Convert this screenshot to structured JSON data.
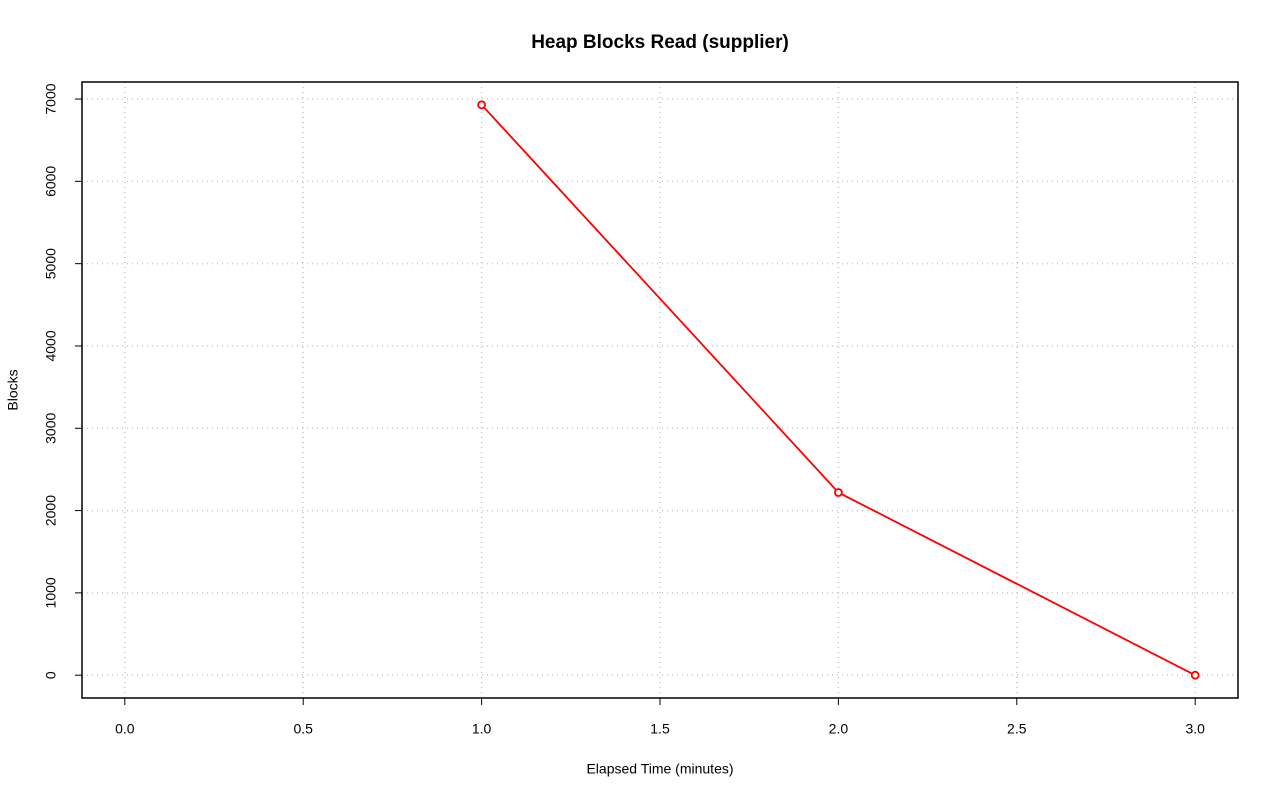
{
  "chart_data": {
    "type": "line",
    "title": "Heap Blocks Read (supplier)",
    "x_label": "Elapsed Time (minutes)",
    "y_label": "Blocks",
    "x": [
      1,
      2,
      3
    ],
    "series": [
      {
        "name": "supplier",
        "color": "#ff0000",
        "values": [
          6930,
          2220,
          0
        ]
      }
    ],
    "xlim": [
      -0.12,
      3.12
    ],
    "xticks": [
      {
        "value": 0,
        "label": "0.0"
      },
      {
        "value": 0.5,
        "label": "0.5"
      },
      {
        "value": 1,
        "label": "1.0"
      },
      {
        "value": 1.5,
        "label": "1.5"
      },
      {
        "value": 2,
        "label": "2.0"
      },
      {
        "value": 2.5,
        "label": "2.5"
      },
      {
        "value": 3,
        "label": "3.0"
      }
    ],
    "ylim": [
      -277.2,
      7207.2
    ],
    "yticks": [
      0,
      1000,
      2000,
      3000,
      4000,
      5000,
      6000,
      7000
    ],
    "grid": true,
    "markers": "open-circle"
  }
}
